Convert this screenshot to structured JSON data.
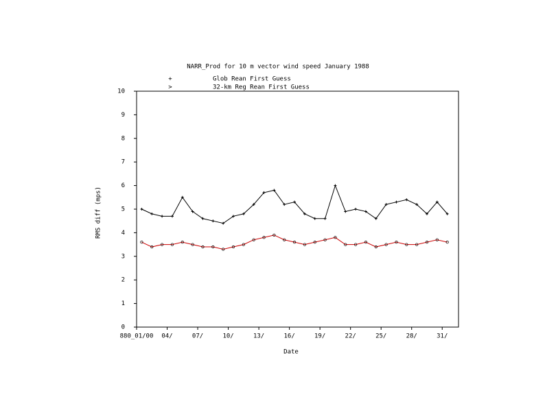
{
  "chart_data": {
    "type": "line",
    "title": "NARR_Prod for 10 m vector wind speed January 1988",
    "x_label": "Date",
    "y_label": "RMS diff (mps)",
    "x": [
      0.5,
      1.5,
      2.5,
      3.5,
      4.5,
      5.5,
      6.5,
      7.5,
      8.5,
      9.5,
      10.5,
      11.5,
      12.5,
      13.5,
      14.5,
      15.5,
      16.5,
      17.5,
      18.5,
      19.5,
      20.5,
      21.5,
      22.5,
      23.5,
      24.5,
      25.5,
      26.5,
      27.5,
      28.5,
      29.5,
      30.5
    ],
    "series": [
      {
        "name": "Glob Rean First Guess",
        "symbol": "+",
        "color": "#000000",
        "values": [
          5.0,
          4.8,
          4.7,
          4.7,
          5.5,
          4.9,
          4.6,
          4.5,
          4.4,
          4.7,
          4.8,
          5.2,
          5.7,
          5.8,
          5.2,
          5.3,
          4.8,
          4.6,
          4.6,
          6.0,
          4.9,
          5.0,
          4.9,
          4.6,
          5.2,
          5.3,
          5.4,
          5.2,
          4.8,
          5.3,
          4.8
        ]
      },
      {
        "name": "32-km Reg Rean First Guess",
        "symbol": ">",
        "color": "#cc0000",
        "values": [
          3.6,
          3.4,
          3.5,
          3.5,
          3.6,
          3.5,
          3.4,
          3.4,
          3.3,
          3.4,
          3.5,
          3.7,
          3.8,
          3.9,
          3.7,
          3.6,
          3.5,
          3.6,
          3.7,
          3.8,
          3.5,
          3.5,
          3.6,
          3.4,
          3.5,
          3.6,
          3.5,
          3.5,
          3.6,
          3.7,
          3.6
        ]
      }
    ],
    "xlim": [
      0,
      31.6
    ],
    "xticks": [
      {
        "value": 0,
        "label": "880_01/00"
      },
      {
        "value": 3,
        "label": "04/"
      },
      {
        "value": 6,
        "label": "07/"
      },
      {
        "value": 9,
        "label": "10/"
      },
      {
        "value": 12,
        "label": "13/"
      },
      {
        "value": 15,
        "label": "16/"
      },
      {
        "value": 18,
        "label": "19/"
      },
      {
        "value": 21,
        "label": "22/"
      },
      {
        "value": 24,
        "label": "25/"
      },
      {
        "value": 27,
        "label": "28/"
      },
      {
        "value": 30,
        "label": "31/"
      }
    ],
    "ylim": [
      0,
      10
    ],
    "yticks": [
      0,
      1,
      2,
      3,
      4,
      5,
      6,
      7,
      8,
      9,
      10
    ]
  }
}
